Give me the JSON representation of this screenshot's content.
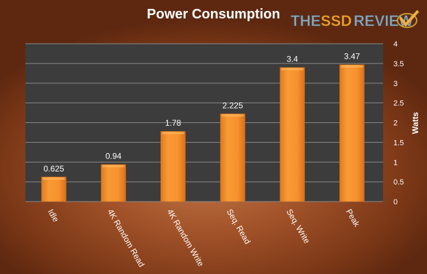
{
  "chart_data": {
    "type": "bar",
    "title": "Power Consumption",
    "categories": [
      "Idle",
      "4K Random Read",
      "4K Random Write",
      "Seq. Read",
      "Seq. Write",
      "Peak"
    ],
    "values": [
      0.625,
      0.94,
      1.78,
      2.225,
      3.4,
      3.47
    ],
    "data_labels": [
      "0.625",
      "0.94",
      "1.78",
      "2.225",
      "3.4",
      "3.47"
    ],
    "xlabel": "",
    "ylabel": "Watts",
    "ylim": [
      0,
      4
    ],
    "yticks": [
      "0",
      "0.5",
      "1",
      "1.5",
      "2",
      "2.5",
      "3",
      "3.5",
      "4"
    ],
    "grid": true,
    "axis_side": "right",
    "colors": {
      "bar": "#f7922e",
      "plot_bg": "#3c3c3c",
      "grid": "#8a8a8a",
      "text": "#ffffff"
    }
  },
  "logo": {
    "text_a": "THE",
    "text_b": "SSD",
    "text_c": "REVIEW"
  }
}
